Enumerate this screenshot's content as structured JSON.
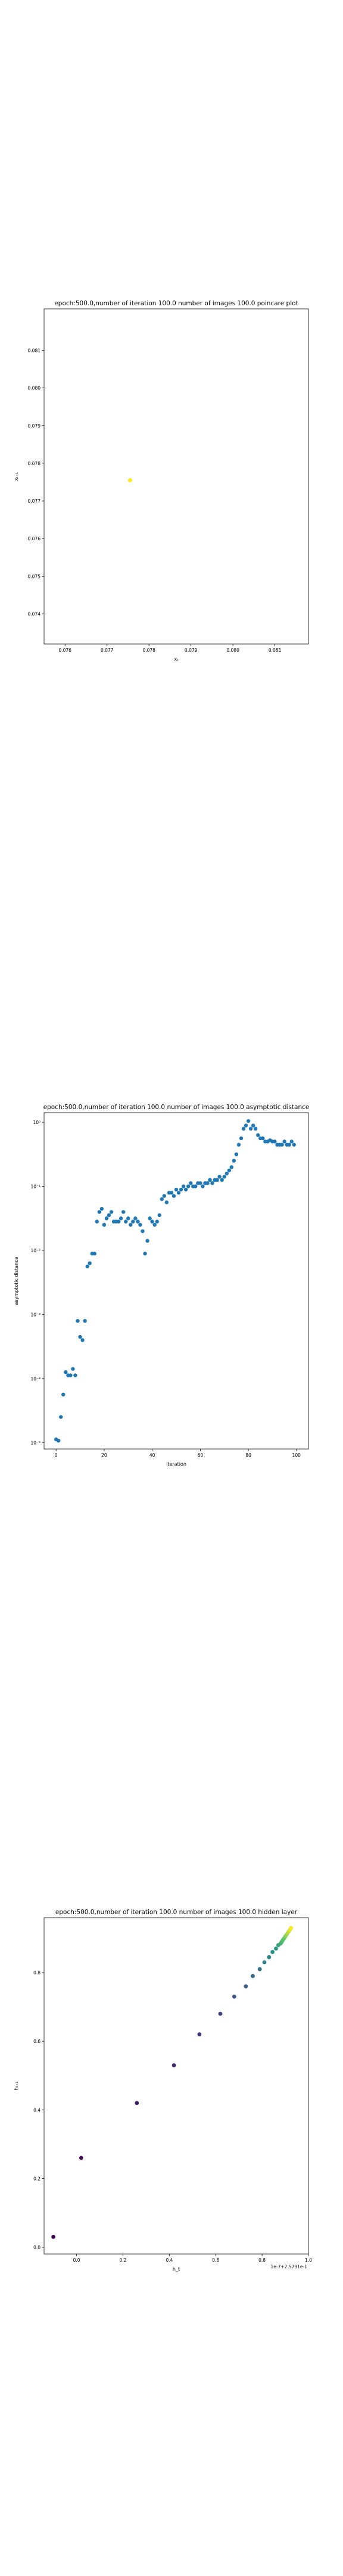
{
  "chart_data": [
    {
      "type": "scatter",
      "title": "epoch:500.0,number of iteration 100.0 number of images 100.0 poincare plot",
      "xlabel": "xₜ",
      "ylabel": "xₜ₊₁",
      "xlim": [
        0.0755,
        0.0818
      ],
      "ylim": [
        0.0732,
        0.0821
      ],
      "xticks": [
        "0.076",
        "0.077",
        "0.078",
        "0.079",
        "0.080",
        "0.081"
      ],
      "xtick_values": [
        0.076,
        0.077,
        0.078,
        0.079,
        0.08,
        0.081
      ],
      "yticks": [
        "0.074",
        "0.075",
        "0.076",
        "0.077",
        "0.078",
        "0.079",
        "0.080",
        "0.081"
      ],
      "ytick_values": [
        0.074,
        0.075,
        0.076,
        0.077,
        0.078,
        0.079,
        0.08,
        0.081
      ],
      "points": [
        [
          0.07755,
          0.07755
        ]
      ],
      "marker_color": "#fde725",
      "grid": false
    },
    {
      "type": "scatter",
      "title": "epoch:500.0,number of iteration 100.0  number of images 100.0 asymptotic distance",
      "xlabel": "iteration",
      "ylabel": "asymptotic distance",
      "xlim": [
        -5,
        105
      ],
      "ylim_log10": [
        -5.1,
        0.15
      ],
      "xticks": [
        "0",
        "20",
        "40",
        "60",
        "80",
        "100"
      ],
      "xtick_values": [
        0,
        20,
        40,
        60,
        80,
        100
      ],
      "yticks": [
        "10⁻⁵",
        "10⁻⁴",
        "10⁻³",
        "10⁻²",
        "10⁻¹",
        "10⁰"
      ],
      "ytick_values_log10": [
        -5,
        -4,
        -3,
        -2,
        -1,
        0
      ],
      "log_y": true,
      "marker_color": "#1f77b4",
      "grid": false,
      "x": [
        0,
        1,
        2,
        3,
        4,
        5,
        6,
        7,
        8,
        9,
        10,
        11,
        12,
        13,
        14,
        15,
        16,
        17,
        18,
        19,
        20,
        21,
        22,
        23,
        24,
        25,
        26,
        27,
        28,
        29,
        30,
        31,
        32,
        33,
        34,
        35,
        36,
        37,
        38,
        39,
        40,
        41,
        42,
        43,
        44,
        45,
        46,
        47,
        48,
        49,
        50,
        51,
        52,
        53,
        54,
        55,
        56,
        57,
        58,
        59,
        60,
        61,
        62,
        63,
        64,
        65,
        66,
        67,
        68,
        69,
        70,
        71,
        72,
        73,
        74,
        75,
        76,
        77,
        78,
        79,
        80,
        81,
        82,
        83,
        84,
        85,
        86,
        87,
        88,
        89,
        90,
        91,
        92,
        93,
        94,
        95,
        96,
        97,
        98,
        99
      ],
      "y_log10": [
        -4.95,
        -4.97,
        -4.6,
        -4.25,
        -3.9,
        -3.95,
        -3.95,
        -3.85,
        -3.95,
        -3.1,
        -3.35,
        -3.4,
        -3.1,
        -2.25,
        -2.2,
        -2.05,
        -2.05,
        -1.55,
        -1.4,
        -1.35,
        -1.6,
        -1.5,
        -1.45,
        -1.4,
        -1.55,
        -1.55,
        -1.55,
        -1.5,
        -1.4,
        -1.55,
        -1.5,
        -1.6,
        -1.55,
        -1.5,
        -1.55,
        -1.6,
        -1.7,
        -2.05,
        -1.85,
        -1.5,
        -1.55,
        -1.6,
        -1.55,
        -1.45,
        -1.2,
        -1.15,
        -1.25,
        -1.1,
        -1.1,
        -1.15,
        -1.05,
        -1.1,
        -1.05,
        -1.0,
        -1.05,
        -1.0,
        -0.95,
        -1.0,
        -1.0,
        -0.95,
        -0.95,
        -1.0,
        -0.95,
        -0.95,
        -0.9,
        -0.95,
        -0.9,
        -0.9,
        -0.85,
        -0.9,
        -0.85,
        -0.8,
        -0.75,
        -0.7,
        -0.6,
        -0.5,
        -0.35,
        -0.25,
        -0.1,
        -0.05,
        0.02,
        -0.1,
        -0.05,
        -0.1,
        -0.2,
        -0.25,
        -0.25,
        -0.3,
        -0.3,
        -0.28,
        -0.3,
        -0.3,
        -0.35,
        -0.35,
        -0.35,
        -0.3,
        -0.35,
        -0.35,
        -0.3,
        -0.35
      ]
    },
    {
      "type": "scatter",
      "title": "epoch:500.0,number of iteration 100.0  number of images 100.0 hidden layer",
      "xlabel": "h_t",
      "ylabel": "hₜ₊₁",
      "corner_label": "1e-7+2.5791e-1",
      "xlim": [
        -0.14,
        1.0
      ],
      "ylim": [
        -0.02,
        0.96
      ],
      "xticks": [
        "0.0",
        "0.2",
        "0.4",
        "0.6",
        "0.8",
        "1.0"
      ],
      "xtick_values": [
        0.0,
        0.2,
        0.4,
        0.6,
        0.8,
        1.0
      ],
      "yticks": [
        "0.0",
        "0.2",
        "0.4",
        "0.6",
        "0.8"
      ],
      "ytick_values": [
        0.0,
        0.2,
        0.4,
        0.6,
        0.8
      ],
      "colormap": [
        "#440154",
        "#3b528b",
        "#21918c",
        "#5ec962",
        "#fde725"
      ],
      "grid": false,
      "x": [
        -0.1,
        0.02,
        0.26,
        0.42,
        0.53,
        0.62,
        0.68,
        0.73,
        0.76,
        0.79,
        0.81,
        0.83,
        0.845,
        0.86,
        0.87,
        0.88,
        0.885,
        0.89,
        0.895,
        0.9,
        0.905,
        0.91,
        0.915,
        0.92,
        0.925
      ],
      "y": [
        0.03,
        0.26,
        0.42,
        0.53,
        0.62,
        0.68,
        0.73,
        0.76,
        0.79,
        0.81,
        0.83,
        0.845,
        0.86,
        0.87,
        0.88,
        0.885,
        0.89,
        0.895,
        0.9,
        0.905,
        0.91,
        0.915,
        0.92,
        0.925,
        0.93
      ]
    }
  ]
}
